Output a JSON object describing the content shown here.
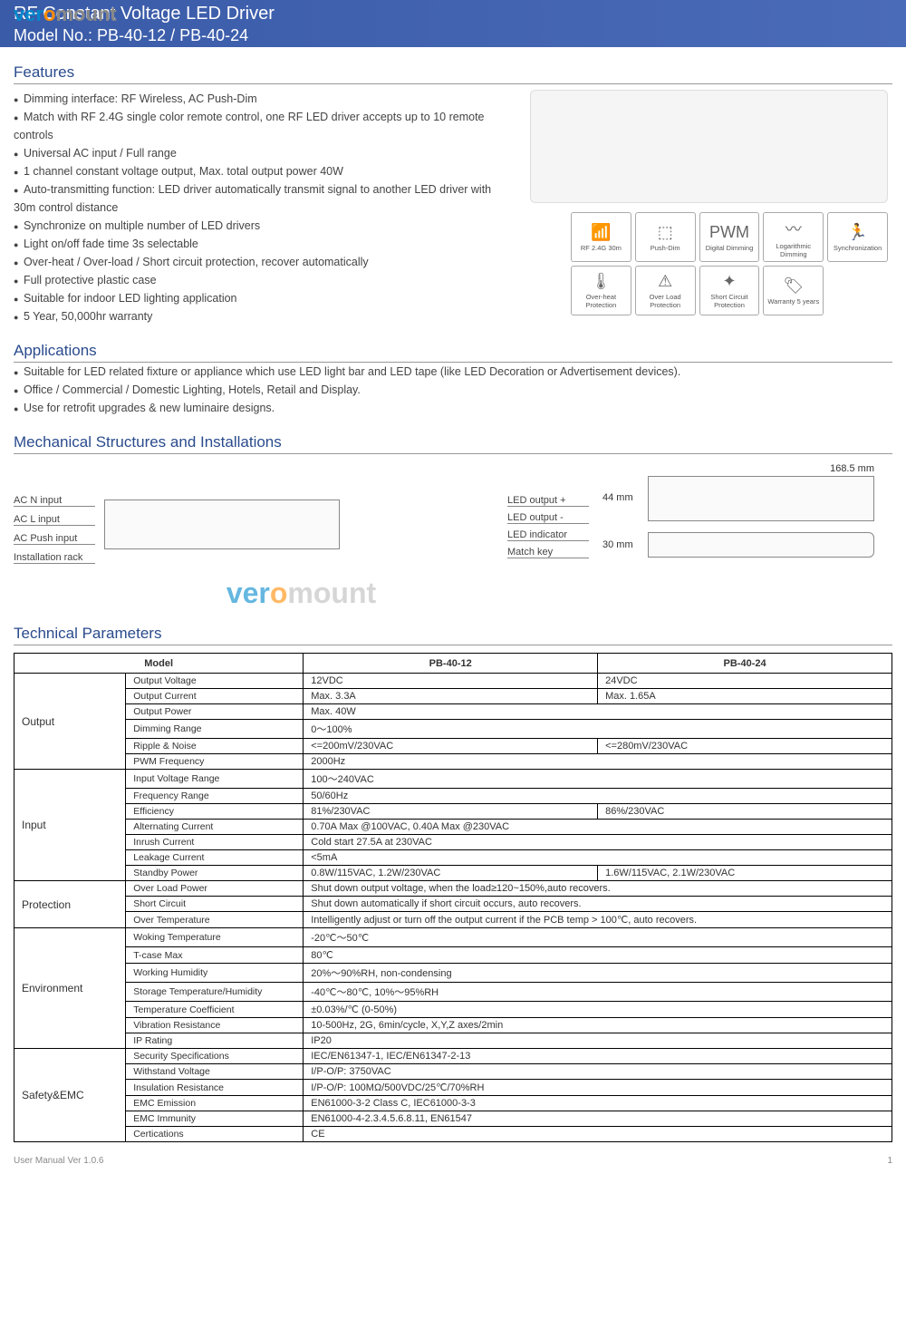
{
  "header": {
    "title": "RF Constant Voltage LED Driver",
    "model": "Model No.: PB-40-12 / PB-40-24",
    "watermark": {
      "pre": "ver",
      "o": "o",
      "post": "mount"
    }
  },
  "sections": {
    "features": "Features",
    "applications": "Applications",
    "mechanical": "Mechanical Structures and Installations",
    "technical": "Technical Parameters"
  },
  "features": [
    "Dimming interface: RF Wireless, AC Push-Dim",
    "Match with RF 2.4G single color remote control, one RF LED driver accepts up to 10 remote controls",
    "Universal AC input / Full range",
    "1 channel constant voltage output, Max. total output power 40W",
    "Auto-transmitting function: LED driver automatically transmit signal to another LED driver with 30m control distance",
    "Synchronize on multiple number of LED drivers",
    "Light on/off fade time 3s selectable",
    "Over-heat  / Over-load / Short circuit protection, recover automatically",
    "Full protective plastic case",
    "Suitable for indoor LED lighting application",
    "5 Year, 50,000hr warranty"
  ],
  "icons": [
    {
      "glyph": "📶",
      "label": "RF 2.4G 30m"
    },
    {
      "glyph": "⬚",
      "label": "Push-Dim"
    },
    {
      "glyph": "PWM",
      "label": "Digital Dimming"
    },
    {
      "glyph": "〰",
      "label": "Logarithmic Dimming"
    },
    {
      "glyph": "🏃",
      "label": "Synchronization"
    },
    {
      "glyph": "🌡",
      "label": "Over-heat Protection"
    },
    {
      "glyph": "⚠",
      "label": "Over Load Protection"
    },
    {
      "glyph": "✦",
      "label": "Short Circuit Protection"
    },
    {
      "glyph": "🏷",
      "label": "Warranty 5 years"
    }
  ],
  "applications": [
    "Suitable for LED related fixture or appliance which use LED light bar and LED tape (like LED Decoration or Advertisement devices).",
    "Office / Commercial / Domestic Lighting, Hotels, Retail and Display.",
    "Use for retrofit upgrades & new luminaire designs."
  ],
  "mechanical": {
    "left_labels": [
      "AC N input",
      "AC L input",
      "AC Push input",
      "Installation rack"
    ],
    "right_labels": [
      "LED output +",
      "LED output -",
      "LED indicator",
      "Match key"
    ],
    "dimensions": {
      "width": "168.5 mm",
      "depth": "44 mm",
      "height": "30 mm"
    }
  },
  "table": {
    "headers": [
      "Model",
      "PB-40-12",
      "PB-40-24"
    ],
    "groups": [
      {
        "name": "Output",
        "rows": [
          [
            "Output Voltage",
            "12VDC",
            "24VDC"
          ],
          [
            "Output Current",
            "Max. 3.3A",
            "Max. 1.65A"
          ],
          [
            "Output Power",
            "Max. 40W",
            ""
          ],
          [
            "Dimming Range",
            "0～100%",
            ""
          ],
          [
            "Ripple & Noise",
            "<=200mV/230VAC",
            "<=280mV/230VAC"
          ],
          [
            "PWM Frequency",
            "2000Hz",
            ""
          ]
        ]
      },
      {
        "name": "Input",
        "rows": [
          [
            "Input Voltage Range",
            "100～240VAC",
            ""
          ],
          [
            "Frequency Range",
            "50/60Hz",
            ""
          ],
          [
            "Efficiency",
            "81%/230VAC",
            "86%/230VAC"
          ],
          [
            "Alternating Current",
            "0.70A Max @100VAC, 0.40A Max @230VAC",
            ""
          ],
          [
            "Inrush Current",
            "Cold start 27.5A at 230VAC",
            ""
          ],
          [
            "Leakage Current",
            "<5mA",
            ""
          ],
          [
            "Standby Power",
            "0.8W/115VAC, 1.2W/230VAC",
            "1.6W/115VAC, 2.1W/230VAC"
          ]
        ]
      },
      {
        "name": "Protection",
        "rows": [
          [
            "Over Load Power",
            "Shut down output voltage, when the load≥120~150%,auto recovers.",
            ""
          ],
          [
            "Short Circuit",
            "Shut down automatically if short circuit occurs, auto recovers.",
            ""
          ],
          [
            "Over Temperature",
            "Intelligently adjust or turn off the output current if the PCB temp > 100℃, auto recovers.",
            ""
          ]
        ]
      },
      {
        "name": "Environment",
        "rows": [
          [
            "Woking Temperature",
            "-20℃～50℃",
            ""
          ],
          [
            "T-case Max",
            "80℃",
            ""
          ],
          [
            "Working Humidity",
            "20%～90%RH, non-condensing",
            ""
          ],
          [
            "Storage Temperature/Humidity",
            "-40℃～80℃, 10%～95%RH",
            ""
          ],
          [
            "Temperature Coefficient",
            "±0.03%/℃ (0-50%)",
            ""
          ],
          [
            "Vibration Resistance",
            "10-500Hz, 2G, 6min/cycle,  X,Y,Z axes/2min",
            ""
          ],
          [
            "IP Rating",
            "IP20",
            ""
          ]
        ]
      },
      {
        "name": "Safety&EMC",
        "rows": [
          [
            "Security Specifications",
            "IEC/EN61347-1, IEC/EN61347-2-13",
            ""
          ],
          [
            "Withstand Voltage",
            "I/P-O/P: 3750VAC",
            ""
          ],
          [
            "Insulation Resistance",
            "I/P-O/P: 100MΩ/500VDC/25℃/70%RH",
            ""
          ],
          [
            "EMC Emission",
            "EN61000-3-2 Class C, IEC61000-3-3",
            ""
          ],
          [
            "EMC Immunity",
            "EN61000-4-2.3.4.5.6.8.11, EN61547",
            ""
          ],
          [
            "Certications",
            "CE",
            ""
          ]
        ]
      }
    ]
  },
  "footer": {
    "version": "User Manual Ver 1.0.6",
    "page": "1"
  }
}
